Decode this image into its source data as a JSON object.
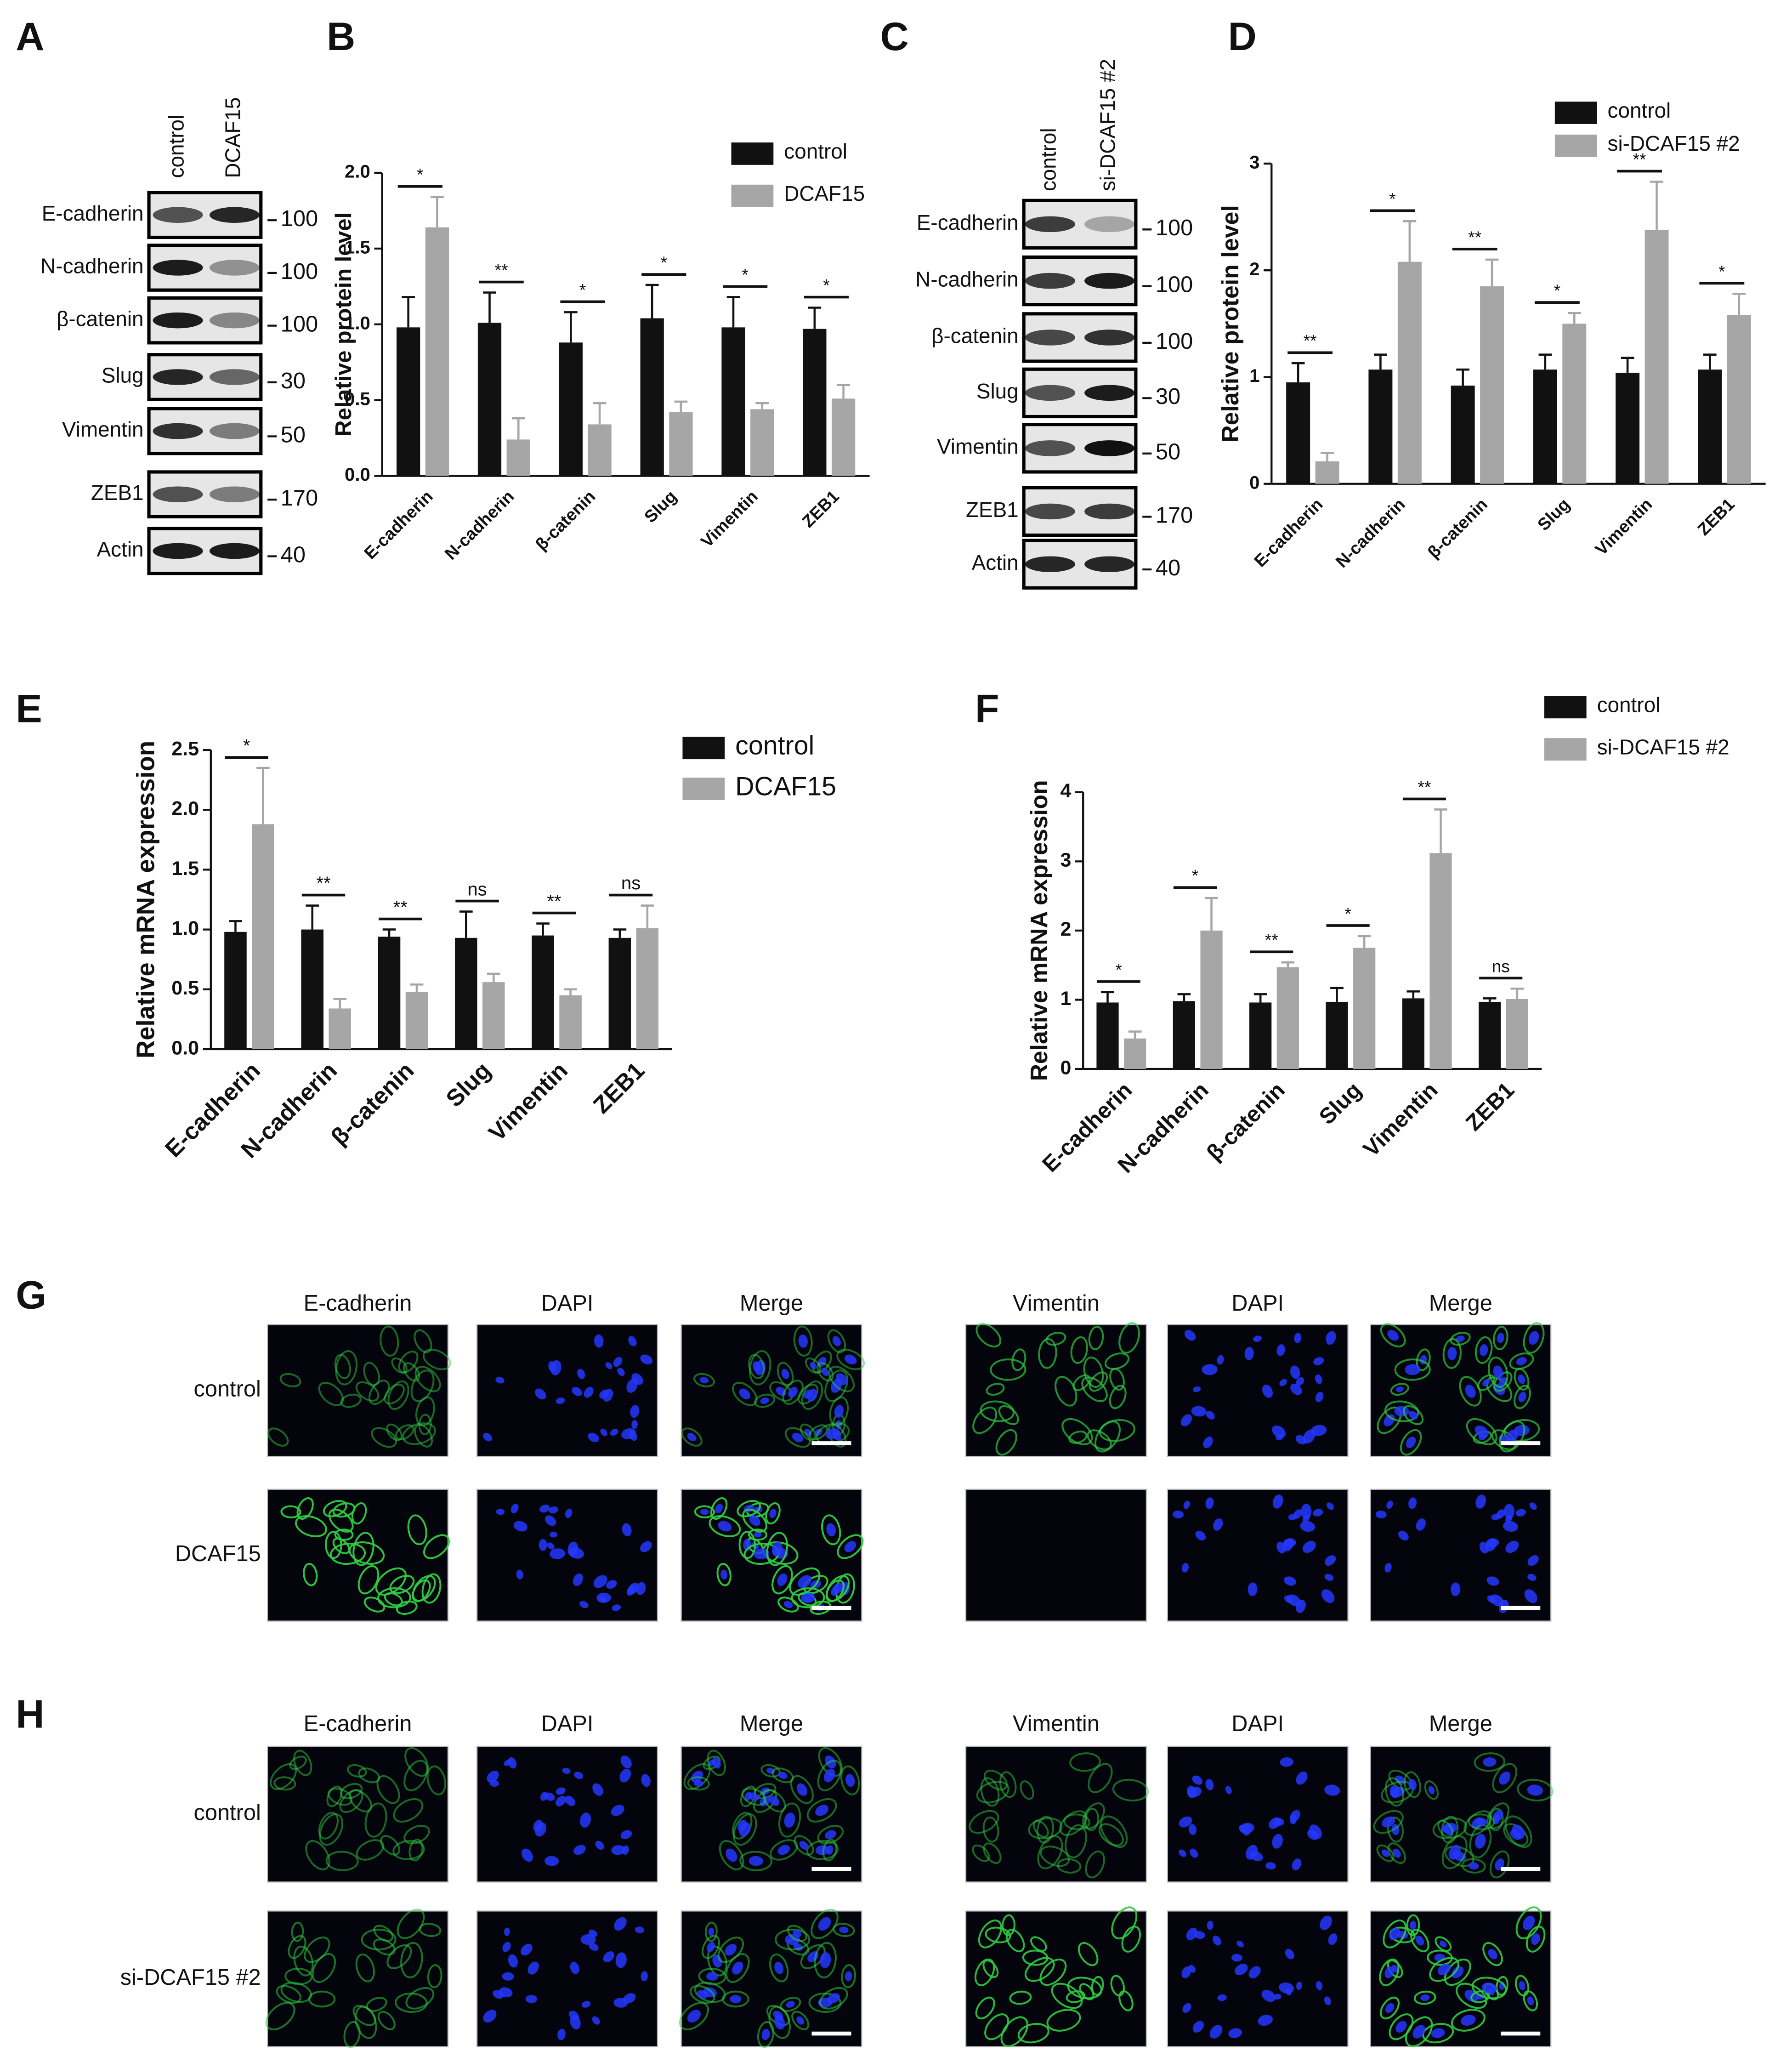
{
  "chart_data": [
    {
      "type": "bar",
      "panel": "B",
      "ylabel": "Relative protein level",
      "categories": [
        "E-cadherin",
        "N-cadherin",
        "β-catenin",
        "Slug",
        "Vimentin",
        "ZEB1"
      ],
      "series": [
        {
          "name": "control",
          "color": "#111111",
          "values": [
            0.98,
            1.01,
            0.88,
            1.04,
            0.98,
            0.97
          ],
          "errors": [
            0.2,
            0.2,
            0.2,
            0.22,
            0.2,
            0.14
          ]
        },
        {
          "name": "DCAF15",
          "color": "#a6a6a6",
          "values": [
            1.64,
            0.24,
            0.34,
            0.42,
            0.44,
            0.51
          ],
          "errors": [
            0.2,
            0.14,
            0.14,
            0.07,
            0.04,
            0.09
          ]
        }
      ],
      "significance": [
        "*",
        "**",
        "*",
        "*",
        "*",
        "*"
      ],
      "ylim": [
        0,
        2.0
      ],
      "yticks": [
        {
          "value": 0,
          "label": "0.0"
        },
        {
          "value": 0.5,
          "label": "0.5"
        },
        {
          "value": 1.0,
          "label": "1.0"
        },
        {
          "value": 1.5,
          "label": "1.5"
        },
        {
          "value": 2.0,
          "label": "2.0"
        }
      ]
    },
    {
      "type": "bar",
      "panel": "D",
      "ylabel": "Relative protein level",
      "categories": [
        "E-cadherin",
        "N-cadherin",
        "β-catenin",
        "Slug",
        "Vimentin",
        "ZEB1"
      ],
      "series": [
        {
          "name": "control",
          "color": "#111111",
          "values": [
            0.95,
            1.07,
            0.92,
            1.07,
            1.04,
            1.07
          ],
          "errors": [
            0.18,
            0.14,
            0.15,
            0.14,
            0.14,
            0.14
          ]
        },
        {
          "name": "si-DCAF15 #2",
          "color": "#a6a6a6",
          "values": [
            0.21,
            2.08,
            1.85,
            1.5,
            2.38,
            1.58
          ],
          "errors": [
            0.08,
            0.38,
            0.25,
            0.1,
            0.45,
            0.2
          ]
        }
      ],
      "significance": [
        "**",
        "*",
        "**",
        "*",
        "**",
        "*"
      ],
      "ylim": [
        0,
        3
      ],
      "yticks": [
        0,
        1,
        2,
        3
      ]
    },
    {
      "type": "bar",
      "panel": "E",
      "ylabel": "Relative mRNA expression",
      "categories": [
        "E-cadherin",
        "N-cadherin",
        "β-catenin",
        "Slug",
        "Vimentin",
        "ZEB1"
      ],
      "series": [
        {
          "name": "control",
          "color": "#111111",
          "values": [
            0.98,
            1.0,
            0.94,
            0.93,
            0.95,
            0.93
          ],
          "errors": [
            0.09,
            0.2,
            0.06,
            0.22,
            0.1,
            0.07
          ]
        },
        {
          "name": "DCAF15",
          "color": "#a6a6a6",
          "values": [
            1.88,
            0.34,
            0.48,
            0.56,
            0.45,
            1.01
          ],
          "errors": [
            0.47,
            0.08,
            0.06,
            0.07,
            0.05,
            0.19
          ]
        }
      ],
      "significance": [
        "*",
        "**",
        "**",
        "ns",
        "**",
        "ns"
      ],
      "ylim": [
        0,
        2.5
      ],
      "yticks": [
        {
          "value": 0,
          "label": "0.0"
        },
        {
          "value": 0.5,
          "label": "0.5"
        },
        {
          "value": 1.0,
          "label": "1.0"
        },
        {
          "value": 1.5,
          "label": "1.5"
        },
        {
          "value": 2.0,
          "label": "2.0"
        },
        {
          "value": 2.5,
          "label": "2.5"
        }
      ]
    },
    {
      "type": "bar",
      "panel": "F",
      "ylabel": "Relative mRNA expression",
      "categories": [
        "E-cadherin",
        "N-cadherin",
        "β-catenin",
        "Slug",
        "Vimentin",
        "ZEB1"
      ],
      "series": [
        {
          "name": "control",
          "color": "#111111",
          "values": [
            0.96,
            0.98,
            0.96,
            0.97,
            1.02,
            0.97
          ],
          "errors": [
            0.15,
            0.1,
            0.12,
            0.2,
            0.1,
            0.05
          ]
        },
        {
          "name": "si-DCAF15 #2",
          "color": "#a6a6a6",
          "values": [
            0.44,
            2.0,
            1.47,
            1.75,
            3.12,
            1.01
          ],
          "errors": [
            0.1,
            0.47,
            0.07,
            0.17,
            0.63,
            0.15
          ]
        }
      ],
      "significance": [
        "*",
        "*",
        "**",
        "*",
        "**",
        "ns"
      ],
      "ylim": [
        0,
        4
      ],
      "yticks": [
        0,
        1,
        2,
        3,
        4
      ]
    }
  ],
  "blots": [
    {
      "panel": "A",
      "lanes": [
        "control",
        "DCAF15"
      ],
      "rows": [
        {
          "name": "E-cadherin",
          "marker": 100
        },
        {
          "name": "N-cadherin",
          "marker": 100
        },
        {
          "name": "β-catenin",
          "marker": 100
        },
        {
          "name": "Slug",
          "marker": 30
        },
        {
          "name": "Vimentin",
          "marker": 50
        },
        {
          "name": "ZEB1",
          "marker": 170
        },
        {
          "name": "Actin",
          "marker": 40
        }
      ]
    },
    {
      "panel": "C",
      "lanes": [
        "control",
        "si-DCAF15 #2"
      ],
      "rows": [
        {
          "name": "E-cadherin",
          "marker": 100
        },
        {
          "name": "N-cadherin",
          "marker": 100
        },
        {
          "name": "β-catenin",
          "marker": 100
        },
        {
          "name": "Slug",
          "marker": 30
        },
        {
          "name": "Vimentin",
          "marker": 50
        },
        {
          "name": "ZEB1",
          "marker": 170
        },
        {
          "name": "Actin",
          "marker": 40
        }
      ]
    }
  ],
  "images": [
    {
      "panel": "G",
      "columns": [
        "E-cadherin",
        "DAPI",
        "Merge",
        "Vimentin",
        "DAPI",
        "Merge"
      ],
      "rows": [
        "control",
        "DCAF15"
      ]
    },
    {
      "panel": "H",
      "columns": [
        "E-cadherin",
        "DAPI",
        "Merge",
        "Vimentin",
        "DAPI",
        "Merge"
      ],
      "rows": [
        "control",
        "si-DCAF15 #2"
      ]
    }
  ]
}
